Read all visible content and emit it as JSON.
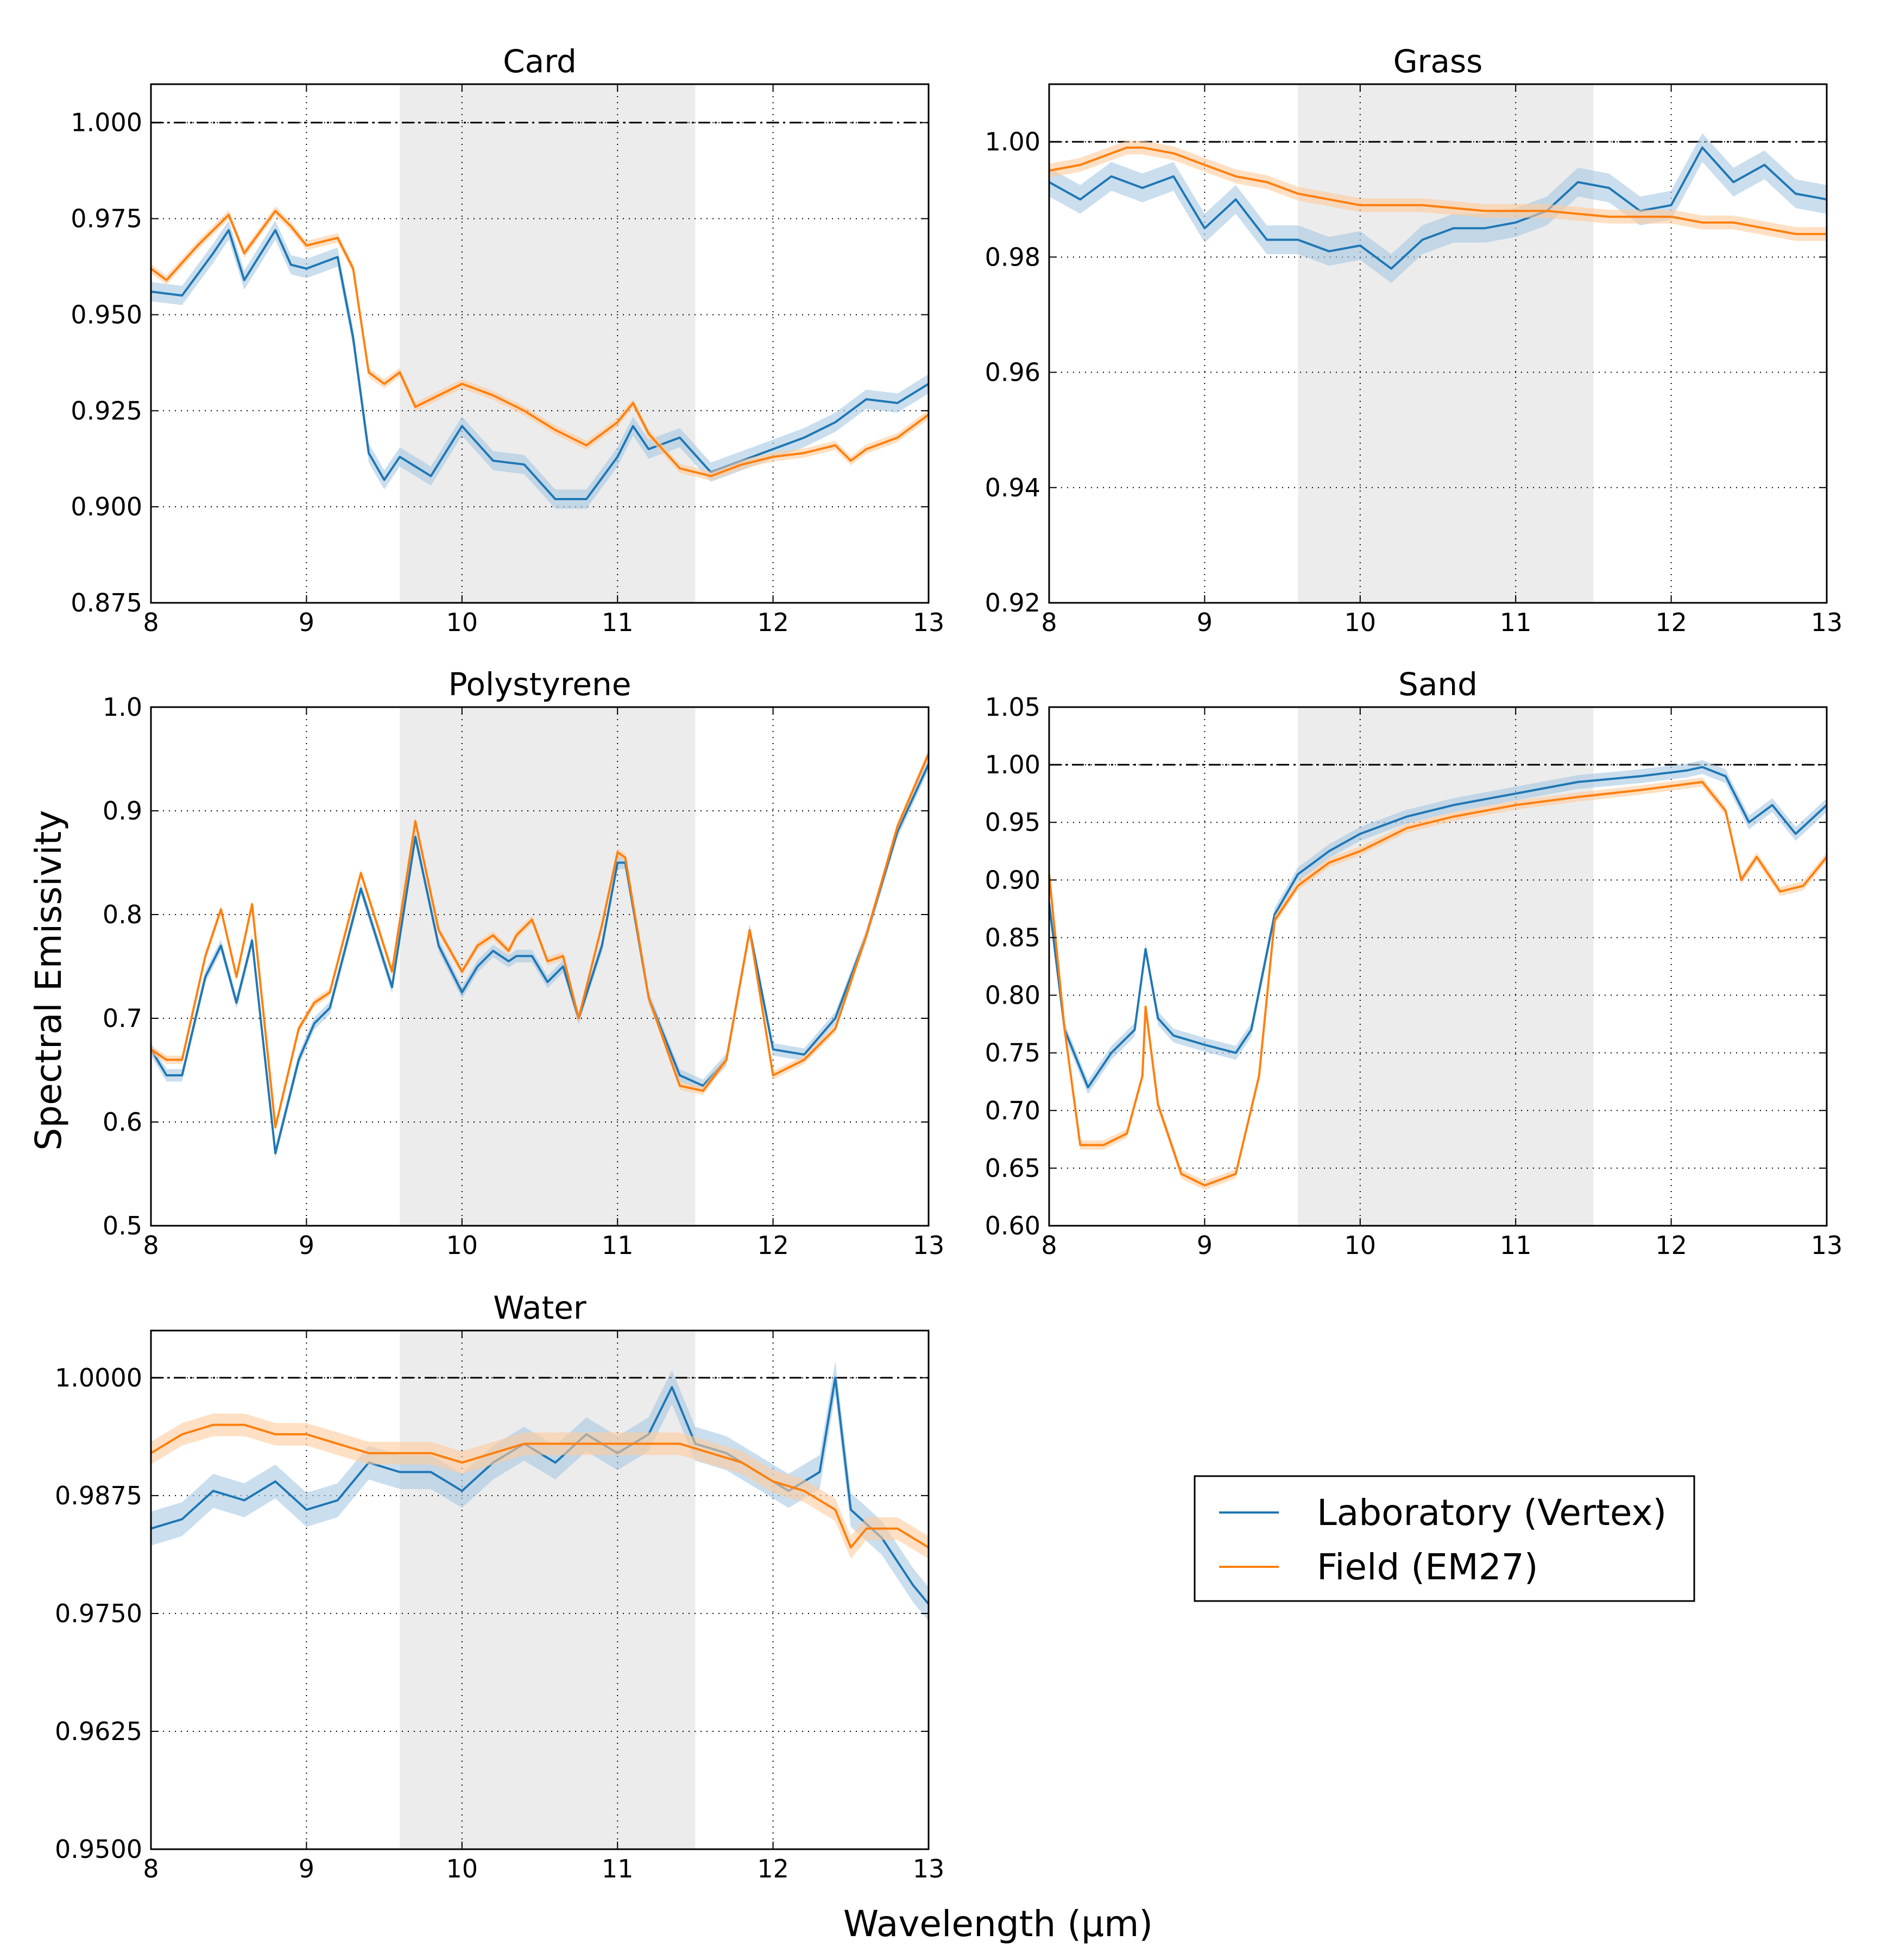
{
  "figure": {
    "ylabel": "Spectral Emissivity",
    "xlabel": "Wavelength (μm)"
  },
  "legend": {
    "entries": [
      {
        "label": "Laboratory (Vertex)",
        "color": "#1f77b4"
      },
      {
        "label": "Field (EM27)",
        "color": "#ff7f0e"
      }
    ]
  },
  "colors": {
    "lab": "#1f77b4",
    "lab_band": "#a6c8e2",
    "field": "#ff7f0e",
    "field_band": "#ffcc9c",
    "shade": "#ececec",
    "grid": "#000000"
  },
  "chart_data": [
    {
      "type": "line",
      "title": "Card",
      "xlim": [
        8,
        13
      ],
      "ylim": [
        0.875,
        1.01
      ],
      "xticks": [
        "8",
        "9",
        "10",
        "11",
        "12",
        "13"
      ],
      "yticks": [
        "0.875",
        "0.900",
        "0.925",
        "0.950",
        "0.975",
        "1.000"
      ],
      "shaded_region": [
        9.6,
        11.5
      ],
      "reference_line": 1.0,
      "series": [
        {
          "name": "Laboratory (Vertex)",
          "x": [
            8.0,
            8.2,
            8.4,
            8.5,
            8.6,
            8.8,
            8.9,
            9.0,
            9.2,
            9.3,
            9.4,
            9.5,
            9.6,
            9.8,
            10.0,
            10.2,
            10.4,
            10.6,
            10.8,
            11.0,
            11.1,
            11.2,
            11.4,
            11.6,
            11.8,
            12.0,
            12.2,
            12.4,
            12.6,
            12.8,
            13.0
          ],
          "y": [
            0.956,
            0.955,
            0.966,
            0.972,
            0.959,
            0.972,
            0.963,
            0.962,
            0.965,
            0.944,
            0.914,
            0.907,
            0.913,
            0.908,
            0.921,
            0.912,
            0.911,
            0.902,
            0.902,
            0.913,
            0.921,
            0.915,
            0.918,
            0.909,
            0.912,
            0.915,
            0.918,
            0.922,
            0.928,
            0.927,
            0.932
          ],
          "band": 0.0025
        },
        {
          "name": "Field (EM27)",
          "x": [
            8.0,
            8.1,
            8.3,
            8.5,
            8.6,
            8.8,
            8.9,
            9.0,
            9.2,
            9.3,
            9.4,
            9.5,
            9.6,
            9.7,
            9.8,
            10.0,
            10.2,
            10.4,
            10.6,
            10.8,
            11.0,
            11.1,
            11.2,
            11.4,
            11.6,
            11.8,
            12.0,
            12.2,
            12.4,
            12.5,
            12.6,
            12.8,
            13.0
          ],
          "y": [
            0.962,
            0.959,
            0.968,
            0.976,
            0.966,
            0.977,
            0.973,
            0.968,
            0.97,
            0.962,
            0.935,
            0.932,
            0.935,
            0.926,
            0.928,
            0.932,
            0.929,
            0.925,
            0.92,
            0.916,
            0.922,
            0.927,
            0.919,
            0.91,
            0.908,
            0.911,
            0.913,
            0.914,
            0.916,
            0.912,
            0.915,
            0.918,
            0.924
          ],
          "band": 0.0012
        }
      ]
    },
    {
      "type": "line",
      "title": "Grass",
      "xlim": [
        8,
        13
      ],
      "ylim": [
        0.92,
        1.01
      ],
      "xticks": [
        "8",
        "9",
        "10",
        "11",
        "12",
        "13"
      ],
      "yticks": [
        "0.92",
        "0.94",
        "0.96",
        "0.98",
        "1.00"
      ],
      "shaded_region": [
        9.6,
        11.5
      ],
      "reference_line": 1.0,
      "series": [
        {
          "name": "Laboratory (Vertex)",
          "x": [
            8.0,
            8.2,
            8.4,
            8.6,
            8.8,
            9.0,
            9.2,
            9.4,
            9.6,
            9.8,
            10.0,
            10.2,
            10.4,
            10.6,
            10.8,
            11.0,
            11.2,
            11.4,
            11.6,
            11.8,
            12.0,
            12.2,
            12.4,
            12.6,
            12.8,
            13.0
          ],
          "y": [
            0.993,
            0.99,
            0.994,
            0.992,
            0.994,
            0.985,
            0.99,
            0.983,
            0.983,
            0.981,
            0.982,
            0.978,
            0.983,
            0.985,
            0.985,
            0.986,
            0.988,
            0.993,
            0.992,
            0.988,
            0.989,
            0.999,
            0.993,
            0.996,
            0.991,
            0.99
          ],
          "band": 0.0025
        },
        {
          "name": "Field (EM27)",
          "x": [
            8.0,
            8.2,
            8.4,
            8.5,
            8.6,
            8.8,
            9.0,
            9.2,
            9.4,
            9.6,
            9.8,
            10.0,
            10.4,
            10.8,
            11.2,
            11.6,
            12.0,
            12.2,
            12.4,
            12.6,
            12.8,
            13.0
          ],
          "y": [
            0.995,
            0.996,
            0.998,
            0.999,
            0.999,
            0.998,
            0.996,
            0.994,
            0.993,
            0.991,
            0.99,
            0.989,
            0.989,
            0.988,
            0.988,
            0.987,
            0.987,
            0.986,
            0.986,
            0.985,
            0.984,
            0.984
          ],
          "band": 0.0012
        }
      ]
    },
    {
      "type": "line",
      "title": "Polystyrene",
      "xlim": [
        8,
        13
      ],
      "ylim": [
        0.5,
        1.0
      ],
      "xticks": [
        "8",
        "9",
        "10",
        "11",
        "12",
        "13"
      ],
      "yticks": [
        "0.5",
        "0.6",
        "0.7",
        "0.8",
        "0.9",
        "1.0"
      ],
      "shaded_region": [
        9.6,
        11.5
      ],
      "reference_line": null,
      "series": [
        {
          "name": "Laboratory (Vertex)",
          "x": [
            8.0,
            8.1,
            8.2,
            8.35,
            8.45,
            8.55,
            8.65,
            8.8,
            8.95,
            9.05,
            9.15,
            9.35,
            9.55,
            9.7,
            9.85,
            10.0,
            10.1,
            10.2,
            10.3,
            10.35,
            10.45,
            10.55,
            10.65,
            10.75,
            10.9,
            11.0,
            11.05,
            11.2,
            11.4,
            11.55,
            11.7,
            11.85,
            12.0,
            12.2,
            12.4,
            12.6,
            12.8,
            13.0
          ],
          "y": [
            0.67,
            0.645,
            0.645,
            0.74,
            0.77,
            0.715,
            0.775,
            0.57,
            0.66,
            0.695,
            0.71,
            0.825,
            0.73,
            0.875,
            0.77,
            0.725,
            0.75,
            0.765,
            0.755,
            0.76,
            0.76,
            0.735,
            0.75,
            0.7,
            0.77,
            0.85,
            0.85,
            0.72,
            0.645,
            0.635,
            0.66,
            0.785,
            0.67,
            0.665,
            0.7,
            0.78,
            0.88,
            0.945
          ],
          "band": 0.006
        },
        {
          "name": "Field (EM27)",
          "x": [
            8.0,
            8.1,
            8.2,
            8.35,
            8.45,
            8.55,
            8.65,
            8.8,
            8.95,
            9.05,
            9.15,
            9.35,
            9.55,
            9.7,
            9.85,
            10.0,
            10.1,
            10.2,
            10.3,
            10.35,
            10.45,
            10.55,
            10.65,
            10.75,
            10.9,
            11.0,
            11.05,
            11.2,
            11.4,
            11.55,
            11.7,
            11.85,
            12.0,
            12.2,
            12.4,
            12.6,
            12.8,
            13.0
          ],
          "y": [
            0.67,
            0.66,
            0.66,
            0.76,
            0.805,
            0.74,
            0.81,
            0.595,
            0.69,
            0.715,
            0.725,
            0.84,
            0.745,
            0.89,
            0.785,
            0.745,
            0.77,
            0.78,
            0.765,
            0.78,
            0.795,
            0.755,
            0.76,
            0.7,
            0.79,
            0.86,
            0.855,
            0.72,
            0.635,
            0.63,
            0.66,
            0.785,
            0.645,
            0.66,
            0.69,
            0.78,
            0.885,
            0.955
          ],
          "band": 0.004
        }
      ]
    },
    {
      "type": "line",
      "title": "Sand",
      "xlim": [
        8,
        13
      ],
      "ylim": [
        0.6,
        1.05
      ],
      "xticks": [
        "8",
        "9",
        "10",
        "11",
        "12",
        "13"
      ],
      "yticks": [
        "0.60",
        "0.65",
        "0.70",
        "0.75",
        "0.80",
        "0.85",
        "0.90",
        "0.95",
        "1.00",
        "1.05"
      ],
      "shaded_region": [
        9.6,
        11.5
      ],
      "reference_line": 1.0,
      "series": [
        {
          "name": "Laboratory (Vertex)",
          "x": [
            8.0,
            8.1,
            8.25,
            8.4,
            8.55,
            8.62,
            8.7,
            8.8,
            9.0,
            9.2,
            9.3,
            9.45,
            9.6,
            9.8,
            10.0,
            10.3,
            10.6,
            11.0,
            11.4,
            11.8,
            12.1,
            12.2,
            12.35,
            12.5,
            12.65,
            12.8,
            13.0
          ],
          "y": [
            0.88,
            0.77,
            0.72,
            0.75,
            0.77,
            0.84,
            0.78,
            0.765,
            0.757,
            0.75,
            0.77,
            0.87,
            0.905,
            0.925,
            0.94,
            0.955,
            0.965,
            0.975,
            0.985,
            0.99,
            0.995,
            0.998,
            0.99,
            0.95,
            0.965,
            0.94,
            0.965
          ],
          "band": 0.006
        },
        {
          "name": "Field (EM27)",
          "x": [
            8.0,
            8.1,
            8.2,
            8.35,
            8.5,
            8.6,
            8.62,
            8.7,
            8.85,
            9.0,
            9.2,
            9.35,
            9.45,
            9.6,
            9.8,
            10.0,
            10.3,
            10.6,
            11.0,
            11.4,
            11.8,
            12.2,
            12.35,
            12.45,
            12.55,
            12.7,
            12.85,
            13.0
          ],
          "y": [
            0.905,
            0.77,
            0.67,
            0.67,
            0.68,
            0.73,
            0.79,
            0.705,
            0.645,
            0.635,
            0.645,
            0.73,
            0.865,
            0.895,
            0.915,
            0.925,
            0.945,
            0.955,
            0.965,
            0.972,
            0.978,
            0.985,
            0.96,
            0.9,
            0.92,
            0.89,
            0.895,
            0.92
          ],
          "band": 0.004
        }
      ]
    },
    {
      "type": "line",
      "title": "Water",
      "xlim": [
        8,
        13
      ],
      "ylim": [
        0.95,
        1.005
      ],
      "xticks": [
        "8",
        "9",
        "10",
        "11",
        "12",
        "13"
      ],
      "yticks": [
        "0.9500",
        "0.9625",
        "0.9750",
        "0.9875",
        "1.0000"
      ],
      "shaded_region": [
        9.6,
        11.5
      ],
      "reference_line": 1.0,
      "series": [
        {
          "name": "Laboratory (Vertex)",
          "x": [
            8.0,
            8.2,
            8.4,
            8.6,
            8.8,
            9.0,
            9.2,
            9.4,
            9.6,
            9.8,
            10.0,
            10.2,
            10.4,
            10.6,
            10.8,
            11.0,
            11.2,
            11.35,
            11.5,
            11.7,
            11.9,
            12.1,
            12.3,
            12.4,
            12.5,
            12.7,
            12.9,
            13.0
          ],
          "y": [
            0.984,
            0.985,
            0.988,
            0.987,
            0.989,
            0.986,
            0.987,
            0.991,
            0.99,
            0.99,
            0.988,
            0.991,
            0.993,
            0.991,
            0.994,
            0.992,
            0.994,
            0.999,
            0.993,
            0.992,
            0.99,
            0.988,
            0.99,
            1.0,
            0.986,
            0.983,
            0.978,
            0.976
          ],
          "band": 0.0018
        },
        {
          "name": "Field (EM27)",
          "x": [
            8.0,
            8.2,
            8.4,
            8.6,
            8.8,
            9.0,
            9.2,
            9.4,
            9.6,
            9.8,
            10.0,
            10.2,
            10.4,
            10.6,
            10.8,
            11.0,
            11.2,
            11.4,
            11.6,
            11.8,
            12.0,
            12.2,
            12.4,
            12.5,
            12.6,
            12.8,
            13.0
          ],
          "y": [
            0.992,
            0.994,
            0.995,
            0.995,
            0.994,
            0.994,
            0.993,
            0.992,
            0.992,
            0.992,
            0.991,
            0.992,
            0.993,
            0.993,
            0.993,
            0.993,
            0.993,
            0.993,
            0.992,
            0.991,
            0.989,
            0.988,
            0.986,
            0.982,
            0.984,
            0.984,
            0.982
          ],
          "band": 0.0012
        }
      ]
    }
  ]
}
